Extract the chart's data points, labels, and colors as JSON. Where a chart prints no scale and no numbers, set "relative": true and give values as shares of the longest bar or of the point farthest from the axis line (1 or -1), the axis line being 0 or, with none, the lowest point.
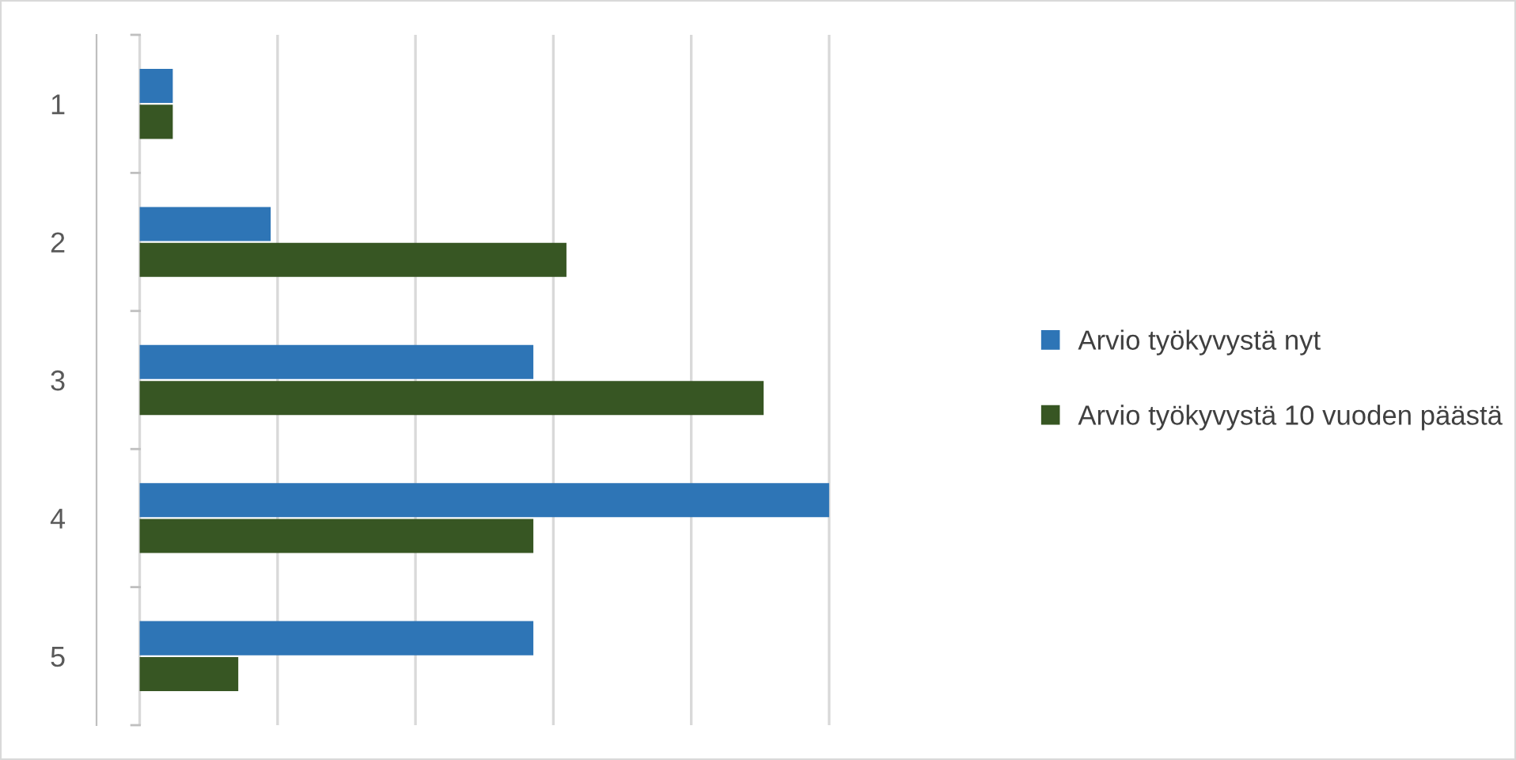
{
  "chart_data": {
    "type": "bar",
    "orientation": "horizontal",
    "relative": true,
    "categories": [
      "1",
      "2",
      "3",
      "4",
      "5"
    ],
    "series": [
      {
        "name": "Arvio työkyvystä nyt",
        "color": "#2e75b6",
        "values": [
          0.048,
          0.19,
          0.571,
          1,
          0.571
        ]
      },
      {
        "name": "Arvio työkyvystä 10 vuoden päästä",
        "color": "#375623",
        "values": [
          0.048,
          0.619,
          0.905,
          0.571,
          0.143
        ]
      }
    ],
    "grid": "x",
    "legend": "right"
  }
}
